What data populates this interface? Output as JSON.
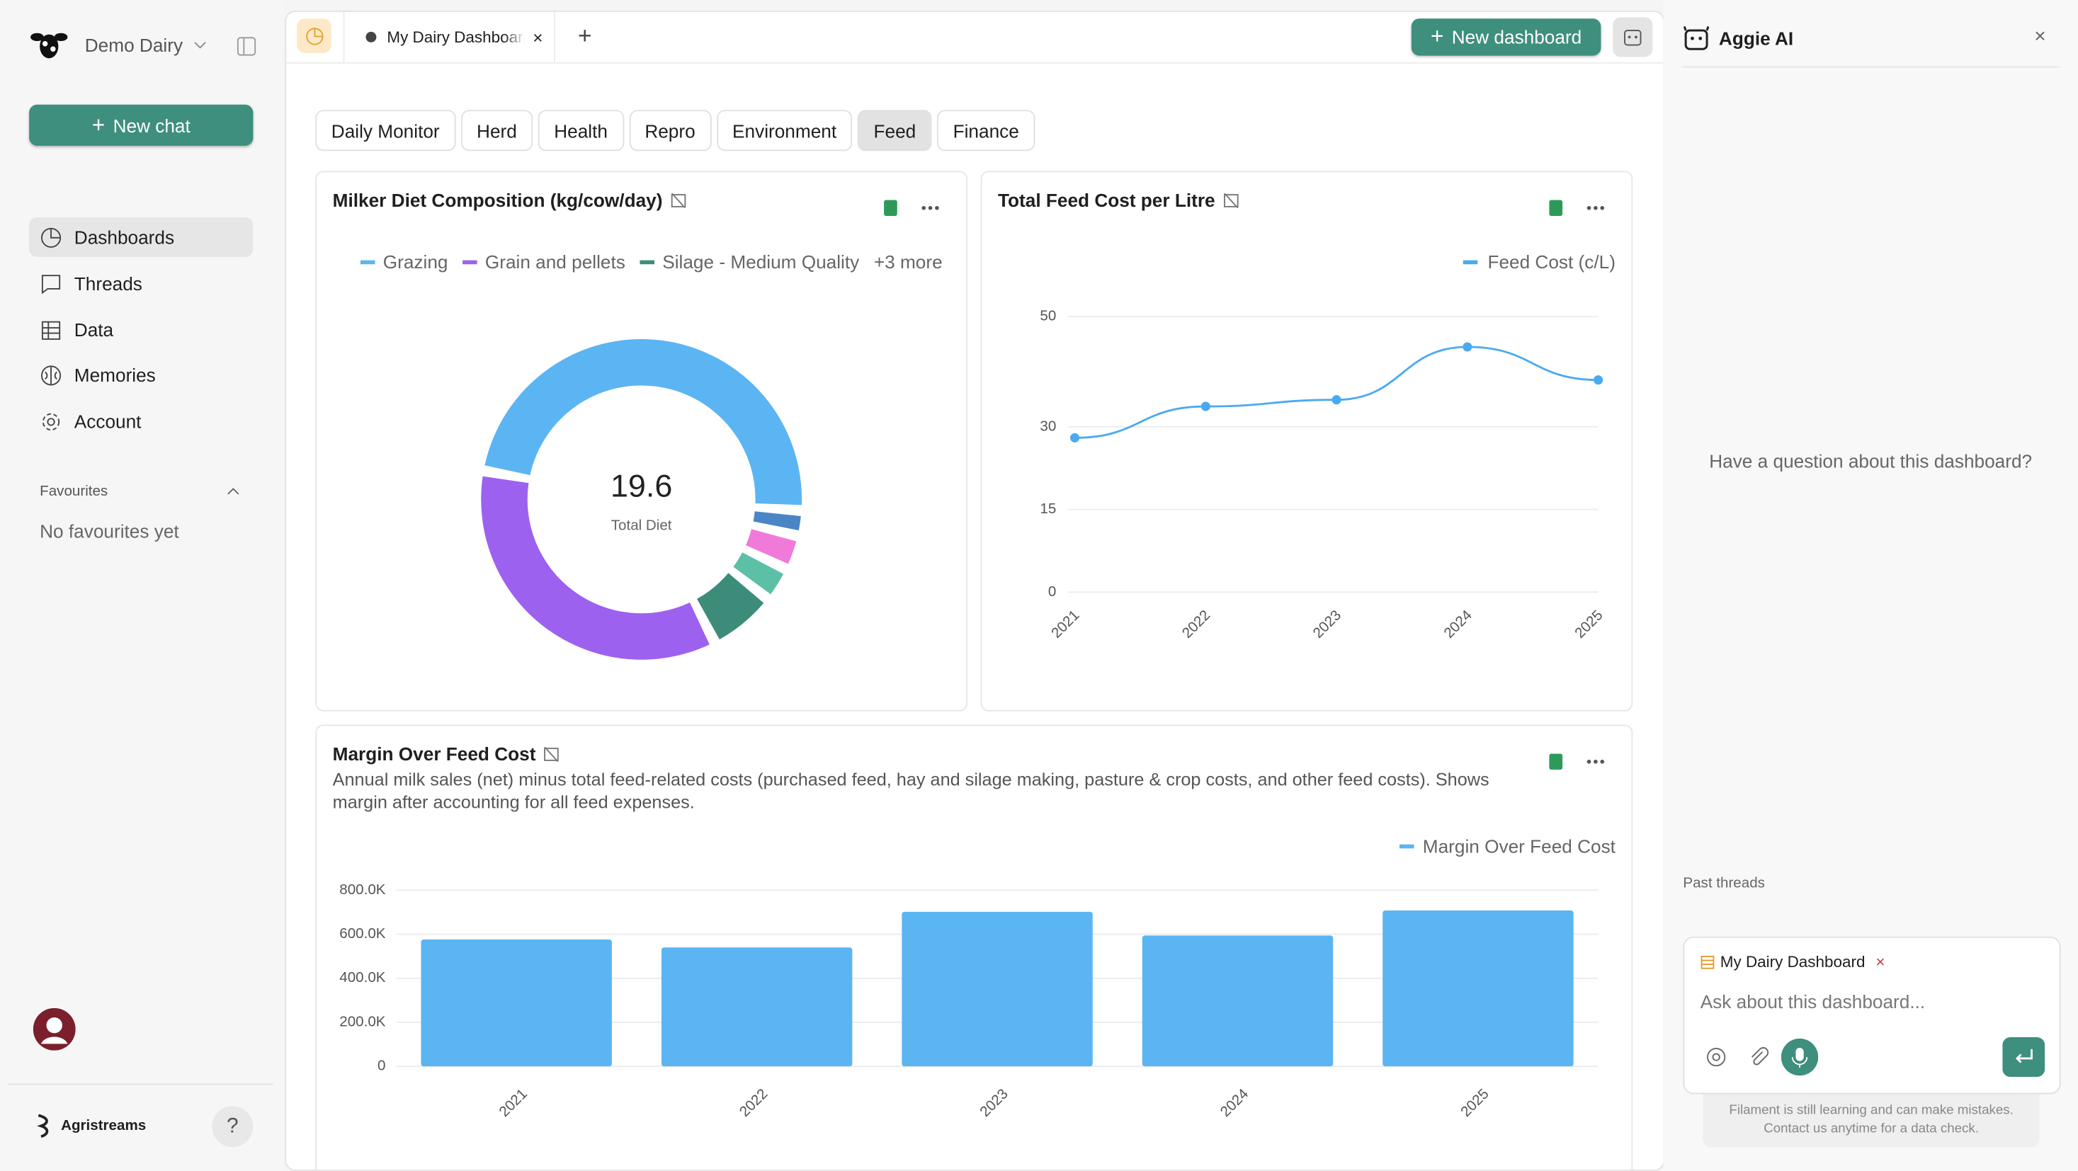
{
  "sidebar": {
    "org": "Demo Dairy",
    "new_chat": "New chat",
    "nav": [
      "Dashboards",
      "Threads",
      "Data",
      "Memories",
      "Account"
    ],
    "favourites_title": "Favourites",
    "favourites_empty": "No favourites yet",
    "brand": "Agristreams",
    "help": "?"
  },
  "header": {
    "tab": "My Dairy Dashboard",
    "new_dashboard": "New dashboard"
  },
  "dashboard_tabs": {
    "items": [
      "Daily Monitor",
      "Herd",
      "Health",
      "Repro",
      "Environment",
      "Feed",
      "Finance"
    ],
    "active": 5
  },
  "chart_data": [
    {
      "type": "donut",
      "title": "Milker Diet Composition (kg/cow/day)",
      "categories": [
        "Grazing",
        "Grain and pellets",
        "Silage - Medium Quality",
        null,
        null,
        null
      ],
      "values": [
        9.9,
        7.2,
        1.2,
        0.5,
        0.5,
        0.3
      ],
      "colors": [
        "#5bb5f2",
        "#9d61ef",
        "#3d8c7a",
        "#5cc0a7",
        "#f07ad9",
        "#4a86c5"
      ],
      "more_label": "+3 more",
      "center_value": 19.6,
      "center_label": "Total Diet"
    },
    {
      "type": "line",
      "title": "Total Feed Cost per Litre",
      "categories": [
        "2021",
        "2022",
        "2023",
        "2024",
        "2025"
      ],
      "series": [
        {
          "name": "Feed Cost (c/L)",
          "color": "#4aaaf0",
          "values": [
            28,
            33.7,
            34.9,
            44.5,
            38.5
          ]
        }
      ],
      "ylim": [
        0,
        50
      ],
      "yticks": [
        0,
        15,
        30,
        50
      ],
      "grid": true
    },
    {
      "type": "bar",
      "title": "Margin Over Feed Cost",
      "description": "Annual milk sales (net) minus total feed-related costs (purchased feed, hay and silage making, pasture & crop costs, and other feed costs). Shows margin after accounting for all feed expenses.",
      "categories": [
        "2021",
        "2022",
        "2023",
        "2024",
        "2025"
      ],
      "series": [
        {
          "name": "Margin Over Feed Cost",
          "color": "#5bb5f2",
          "values": [
            576000,
            540000,
            702000,
            594000,
            708000
          ]
        }
      ],
      "ylim": [
        0,
        800000
      ],
      "yticks": [
        0,
        {
          "value": 200000,
          "label": "200.0K"
        },
        {
          "value": 400000,
          "label": "400.0K"
        },
        {
          "value": 600000,
          "label": "600.0K"
        },
        {
          "value": 800000,
          "label": "800.0K"
        }
      ],
      "grid": true
    }
  ],
  "assistant": {
    "title": "Aggie AI",
    "prompt": "Have a question about this dashboard?",
    "past_threads": "Past threads",
    "chip": "My Dairy Dashboard",
    "placeholder": "Ask about this dashboard...",
    "disclaimer": [
      "Filament is still learning and can make mistakes.",
      "Contact us anytime for a data check."
    ]
  }
}
